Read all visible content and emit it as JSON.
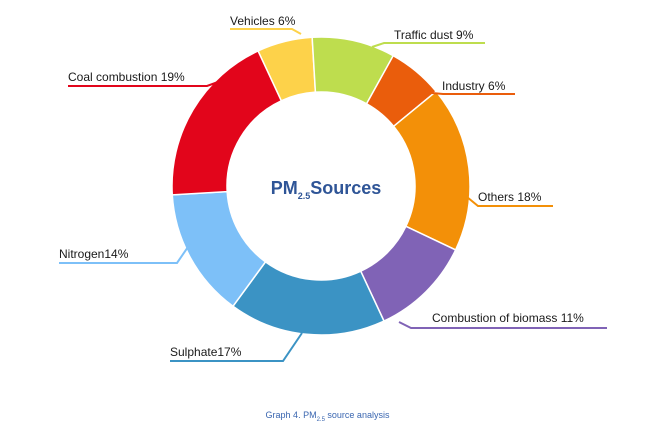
{
  "chart_data": {
    "type": "pie",
    "style": "donut",
    "center_title": {
      "main": "PM",
      "sub": "2.5",
      "rest": "Sources"
    },
    "slices": [
      {
        "label": "Vehicles 6%",
        "value": 6,
        "color": "#fdd24a"
      },
      {
        "label": "Traffic dust 9%",
        "value": 9,
        "color": "#bedd4e"
      },
      {
        "label": "Industry 6%",
        "value": 6,
        "color": "#ea5d0c"
      },
      {
        "label": "Others 18%",
        "value": 18,
        "color": "#f39008"
      },
      {
        "label": "Combustion of biomass 11%",
        "value": 11,
        "color": "#8063b6"
      },
      {
        "label": "Sulphate17%",
        "value": 17,
        "color": "#3b93c4"
      },
      {
        "label": "Nitrogen14%",
        "value": 14,
        "color": "#7dc0f8"
      },
      {
        "label": "Coal  combustion 19%",
        "value": 19,
        "color": "#e2051b"
      }
    ]
  },
  "caption": {
    "prefix": "Graph 4. PM",
    "sub": "2.5",
    "suffix": " source analysis"
  }
}
